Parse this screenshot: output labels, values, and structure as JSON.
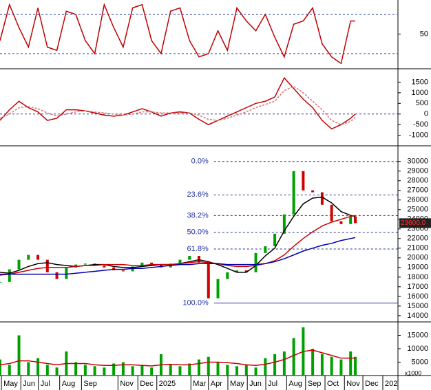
{
  "chart_data": [
    {
      "type": "line",
      "xlim": [
        0,
        84
      ],
      "ylim": [
        0,
        100
      ],
      "yticks": [
        50
      ],
      "levels": [
        20,
        80
      ],
      "x": [
        0,
        2,
        4,
        6,
        8,
        10,
        12,
        14,
        16,
        18,
        20,
        22,
        24,
        26,
        28,
        30,
        32,
        34,
        36,
        38,
        40,
        42,
        44,
        46,
        48,
        50,
        52,
        54,
        56,
        58,
        60,
        62,
        64,
        66,
        68,
        70,
        72,
        74,
        75
      ],
      "series": [
        {
          "color": "#c00000",
          "values": [
            40,
            95,
            60,
            30,
            90,
            30,
            25,
            85,
            80,
            40,
            20,
            95,
            60,
            30,
            90,
            95,
            40,
            20,
            85,
            90,
            40,
            15,
            20,
            55,
            25,
            90,
            70,
            55,
            80,
            45,
            15,
            65,
            70,
            90,
            35,
            15,
            5,
            70,
            70
          ]
        }
      ]
    },
    {
      "type": "line",
      "xlim": [
        0,
        84
      ],
      "ylim": [
        -1430,
        2030
      ],
      "yticks": [
        1500,
        1000,
        500,
        0,
        -500,
        -1000
      ],
      "levels": [
        0
      ],
      "x": [
        0,
        2,
        4,
        6,
        8,
        10,
        12,
        14,
        16,
        18,
        20,
        22,
        24,
        26,
        28,
        30,
        32,
        34,
        36,
        38,
        40,
        42,
        44,
        46,
        48,
        50,
        52,
        54,
        56,
        58,
        60,
        62,
        64,
        66,
        68,
        70,
        72,
        74,
        75
      ],
      "series": [
        {
          "color": "#c00000",
          "values": [
            -300,
            200,
            600,
            300,
            100,
            -300,
            -200,
            200,
            200,
            150,
            50,
            -50,
            -100,
            -50,
            100,
            250,
            100,
            -100,
            50,
            100,
            50,
            -250,
            -500,
            -300,
            -100,
            100,
            300,
            500,
            600,
            800,
            1700,
            1200,
            700,
            300,
            -300,
            -700,
            -500,
            -200,
            0
          ]
        },
        {
          "color": "#e07070",
          "dash": true,
          "values": [
            -200,
            0,
            300,
            350,
            250,
            50,
            -100,
            0,
            100,
            150,
            100,
            50,
            0,
            -50,
            0,
            100,
            100,
            50,
            50,
            50,
            50,
            -50,
            -250,
            -300,
            -200,
            -50,
            100,
            300,
            450,
            600,
            1100,
            1300,
            1000,
            600,
            200,
            -300,
            -500,
            -350,
            -150
          ]
        }
      ]
    },
    {
      "type": "candlestick",
      "xlim": [
        0,
        84
      ],
      "ylim": [
        13350,
        31550
      ],
      "yticks": [
        30000,
        29000,
        28000,
        27000,
        26000,
        25000,
        24000,
        23000,
        22000,
        21000,
        20000,
        19000,
        18000,
        17000,
        16000,
        15000,
        14000
      ],
      "x": [
        0,
        2,
        4,
        6,
        8,
        10,
        12,
        14,
        16,
        18,
        20,
        22,
        24,
        26,
        28,
        30,
        32,
        34,
        36,
        38,
        40,
        42,
        44,
        46,
        48,
        50,
        52,
        54,
        56,
        58,
        60,
        62,
        64,
        66,
        68,
        70,
        72,
        74,
        75
      ],
      "values": [
        17500,
        18800,
        19800,
        20300,
        19800,
        18500,
        17800,
        19000,
        19300,
        19400,
        19200,
        19000,
        18700,
        18600,
        19100,
        19500,
        19300,
        19000,
        19400,
        19800,
        20200,
        19500,
        15800,
        17800,
        18500,
        18700,
        18500,
        20500,
        21200,
        22500,
        24500,
        29000,
        27000,
        26800,
        25500,
        23800,
        23500,
        24300,
        23600
      ],
      "up_color": "#00a000",
      "down_color": "#d00000",
      "series": [
        {
          "color": "#000000",
          "values": [
            18500,
            18400,
            18700,
            19100,
            19400,
            19500,
            19300,
            19200,
            19100,
            19200,
            19300,
            19300,
            19100,
            19000,
            19000,
            19100,
            19200,
            19300,
            19300,
            19400,
            19600,
            19800,
            19600,
            19300,
            18900,
            18500,
            18500,
            19200,
            20200,
            21000,
            22800,
            24300,
            25600,
            26200,
            26300,
            25700,
            24800,
            24400,
            24300
          ]
        },
        {
          "color": "#cc0000",
          "values": [
            18200,
            18300,
            18500,
            18700,
            18900,
            19000,
            19000,
            19000,
            19100,
            19200,
            19200,
            19300,
            19300,
            19300,
            19200,
            19200,
            19300,
            19300,
            19300,
            19400,
            19500,
            19600,
            19500,
            19400,
            19200,
            19100,
            19100,
            19200,
            19400,
            19700,
            20300,
            21200,
            22000,
            22700,
            23300,
            23700,
            24000,
            24300,
            24400
          ]
        },
        {
          "color": "#0000aa",
          "values": [
            18300,
            18300,
            18300,
            18300,
            18300,
            18300,
            18300,
            18300,
            18400,
            18500,
            18600,
            18700,
            18800,
            18800,
            18900,
            18900,
            19000,
            19100,
            19200,
            19300,
            19300,
            19400,
            19400,
            19400,
            19300,
            19300,
            19300,
            19300,
            19400,
            19600,
            19900,
            20300,
            20700,
            21000,
            21300,
            21500,
            21800,
            22000,
            22100
          ]
        }
      ],
      "fib_levels": [
        {
          "label": "0.0%",
          "value": 30000
        },
        {
          "label": "23.6%",
          "value": 26531
        },
        {
          "label": "38.2%",
          "value": 24385
        },
        {
          "label": "50.0%",
          "value": 22650
        },
        {
          "label": "61.8%",
          "value": 20915
        },
        {
          "label": "100.0%",
          "value": 15300
        }
      ],
      "last_price": {
        "value": 23600,
        "label": "23600.0"
      }
    },
    {
      "type": "bar",
      "xlim": [
        0,
        84
      ],
      "ylim": [
        0,
        19500
      ],
      "yticks": [
        15000,
        10000,
        5000
      ],
      "unit_label": "x1000",
      "color": "#00a000",
      "x": [
        0,
        2,
        4,
        6,
        8,
        10,
        12,
        14,
        16,
        18,
        20,
        22,
        24,
        26,
        28,
        30,
        32,
        34,
        36,
        38,
        40,
        42,
        44,
        46,
        48,
        50,
        52,
        54,
        56,
        58,
        60,
        62,
        64,
        66,
        68,
        70,
        72,
        74,
        75
      ],
      "values": [
        6000,
        4000,
        15000,
        5000,
        6500,
        4000,
        3000,
        9000,
        5000,
        4000,
        3500,
        3000,
        4500,
        5000,
        3500,
        4000,
        3000,
        8000,
        4000,
        3500,
        4500,
        6000,
        7000,
        5000,
        4000,
        3500,
        4000,
        3000,
        6500,
        8000,
        9000,
        14000,
        18000,
        10000,
        8000,
        7000,
        6000,
        9000,
        7000
      ],
      "series": [
        {
          "color": "#cc0000",
          "values": [
            4000,
            4500,
            5500,
            5500,
            5000,
            4500,
            4000,
            4500,
            4500,
            4500,
            4000,
            3800,
            3800,
            4000,
            4000,
            3800,
            3600,
            4000,
            4200,
            4000,
            4000,
            4500,
            5000,
            5000,
            4800,
            4500,
            4000,
            3800,
            4200,
            5000,
            6000,
            7500,
            9000,
            9500,
            8500,
            7500,
            6500,
            6500,
            6500
          ]
        }
      ],
      "xticks": [
        {
          "value": 0.3,
          "label": "May"
        },
        {
          "value": 4.4,
          "label": "Jun"
        },
        {
          "value": 8.1,
          "label": "Jul"
        },
        {
          "value": 12.6,
          "label": "Aug"
        },
        {
          "value": 17.2,
          "label": "Sep"
        },
        {
          "value": 24.9,
          "label": "Nov"
        },
        {
          "value": 29.1,
          "label": "Dec"
        },
        {
          "value": 33.1,
          "label": "2025"
        },
        {
          "value": 40.3,
          "label": "Mar"
        },
        {
          "value": 44,
          "label": "Apr"
        },
        {
          "value": 48.1,
          "label": "May"
        },
        {
          "value": 52.2,
          "label": "Jun"
        },
        {
          "value": 56.1,
          "label": "Jul"
        },
        {
          "value": 60.5,
          "label": "Aug"
        },
        {
          "value": 64.5,
          "label": "Sep"
        },
        {
          "value": 68.6,
          "label": "Oct"
        },
        {
          "value": 72.7,
          "label": "Nov"
        },
        {
          "value": 76.6,
          "label": "Dec"
        },
        {
          "value": 80.8,
          "label": "202"
        }
      ]
    }
  ]
}
